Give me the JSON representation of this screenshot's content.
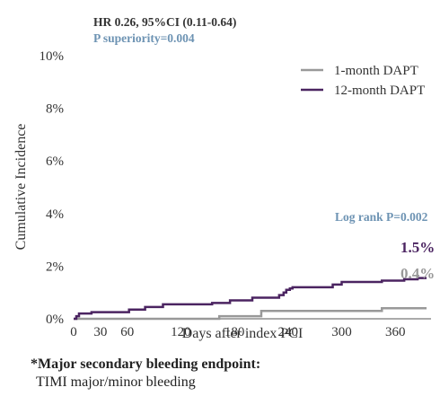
{
  "chart_data": {
    "type": "line",
    "title": "",
    "xlabel": "Days after index PCI",
    "ylabel": "Cumulative Incidence",
    "xlim": [
      0,
      400
    ],
    "ylim": [
      0,
      10
    ],
    "x_ticks": [
      0,
      30,
      60,
      120,
      180,
      240,
      300,
      360
    ],
    "y_ticks": [
      0,
      2,
      4,
      6,
      8,
      10
    ],
    "y_tick_labels": [
      "0%",
      "2%",
      "4%",
      "6%",
      "8%",
      "10%"
    ],
    "grid": false,
    "legend_position": "top-right",
    "colors": {
      "one_month": "#999999",
      "twelve_month": "#4b2461",
      "stat_blue": "#6d93b3",
      "stat_dark": "#333333"
    },
    "series": [
      {
        "name": "1-month DAPT",
        "end_label": "0.4%",
        "x": [
          0,
          160,
          163,
          205,
          210,
          342,
          345,
          395
        ],
        "y": [
          0.0,
          0.0,
          0.1,
          0.1,
          0.3,
          0.3,
          0.4,
          0.4
        ]
      },
      {
        "name": "12-month DAPT",
        "end_label": "1.5%",
        "x": [
          0,
          3,
          6,
          9,
          20,
          62,
          80,
          100,
          155,
          175,
          200,
          230,
          235,
          238,
          242,
          245,
          290,
          300,
          345,
          370,
          385,
          395
        ],
        "y": [
          0.0,
          0.1,
          0.2,
          0.2,
          0.25,
          0.35,
          0.45,
          0.55,
          0.6,
          0.7,
          0.8,
          0.9,
          1.0,
          1.1,
          1.15,
          1.2,
          1.3,
          1.4,
          1.45,
          1.5,
          1.55,
          1.55
        ]
      }
    ],
    "annotations": {
      "hr": "HR 0.26, 95%CI (0.11-0.64)",
      "p_superiority": "P superiority=0.004",
      "log_rank": "Log rank P=0.002"
    }
  },
  "footnote": {
    "title": "*Major secondary bleeding endpoint:",
    "subtitle": "TIMI major/minor bleeding"
  }
}
